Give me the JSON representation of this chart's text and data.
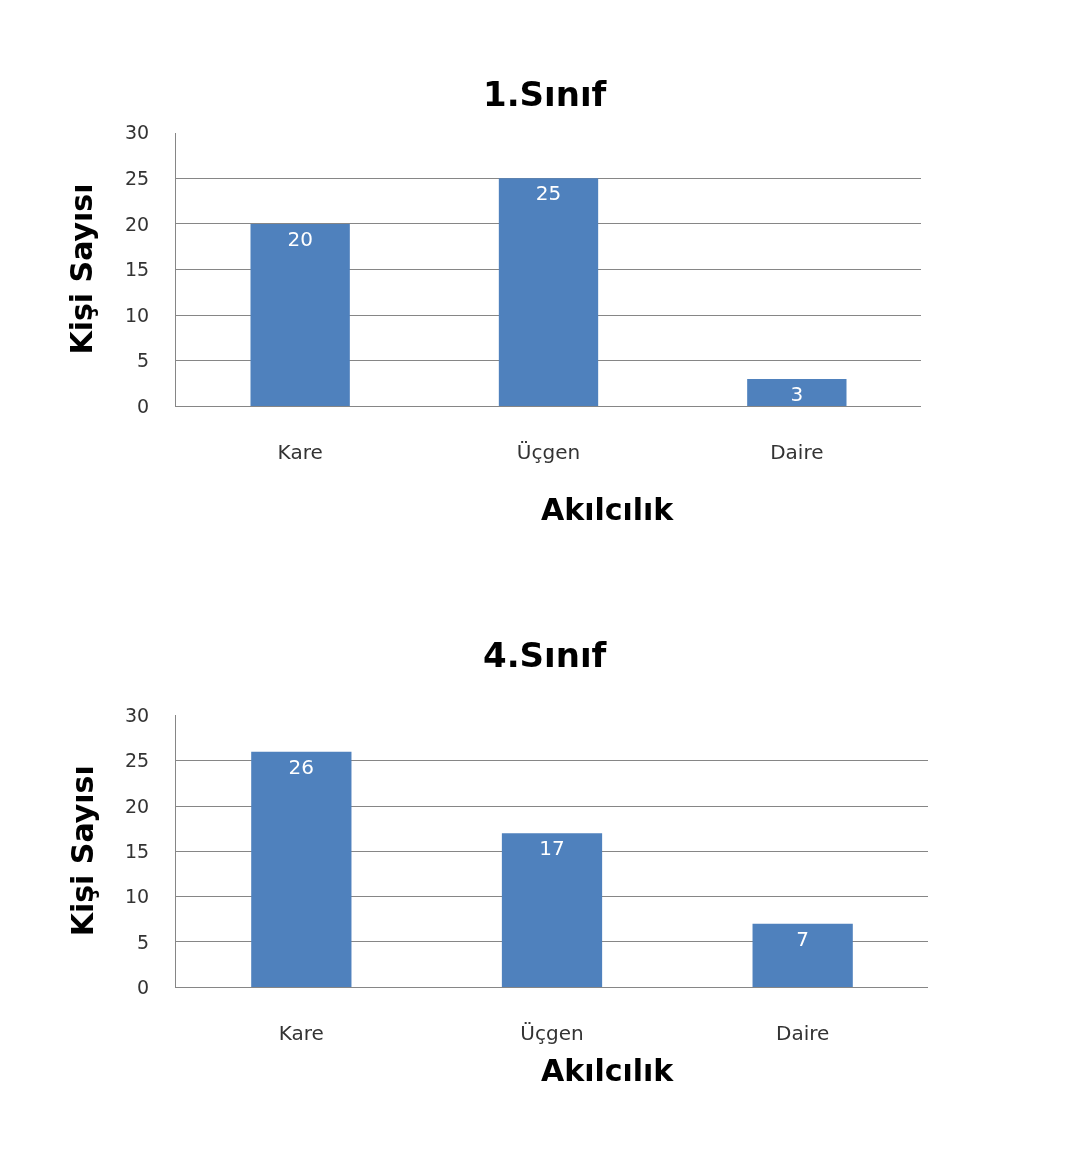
{
  "chart_data": [
    {
      "type": "bar",
      "title": "1.Sınıf",
      "xlabel": "Akılcılık",
      "ylabel": "Kişi Sayısı",
      "categories": [
        "Kare",
        "Üçgen",
        "Daire"
      ],
      "values": [
        20,
        25,
        3
      ],
      "color": "#4f81bd",
      "ylim": [
        0,
        30
      ],
      "yticks": [
        0,
        5,
        10,
        15,
        20,
        25,
        30
      ],
      "grid": "y",
      "data_labels": true
    },
    {
      "type": "bar",
      "title": "4.Sınıf",
      "xlabel": "Akılcılık",
      "ylabel": "Kişi Sayısı",
      "categories": [
        "Kare",
        "Üçgen",
        "Daire"
      ],
      "values": [
        26,
        17,
        7
      ],
      "color": "#4f81bd",
      "ylim": [
        0,
        30
      ],
      "yticks": [
        0,
        5,
        10,
        15,
        20,
        25,
        30
      ],
      "grid": "y",
      "data_labels": true
    }
  ]
}
